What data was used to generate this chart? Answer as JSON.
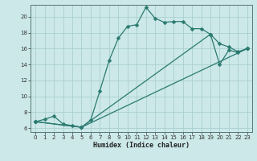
{
  "xlabel": "Humidex (Indice chaleur)",
  "bg_color": "#cce8e8",
  "grid_color": "#aacfcf",
  "line_color": "#2a7a70",
  "xlim": [
    -0.5,
    23.5
  ],
  "ylim": [
    5.5,
    21.5
  ],
  "yticks": [
    6,
    8,
    10,
    12,
    14,
    16,
    18,
    20
  ],
  "xticks": [
    0,
    1,
    2,
    3,
    4,
    5,
    6,
    7,
    8,
    9,
    10,
    11,
    12,
    13,
    14,
    15,
    16,
    17,
    18,
    19,
    20,
    21,
    22,
    23
  ],
  "line1_x": [
    0,
    1,
    2,
    3,
    4,
    5,
    6,
    7,
    8,
    9,
    10,
    11,
    12,
    13,
    14,
    15,
    16,
    17,
    18,
    19,
    20,
    21,
    22,
    23
  ],
  "line1_y": [
    6.8,
    7.1,
    7.5,
    6.5,
    6.3,
    6.1,
    7.0,
    10.7,
    14.5,
    17.3,
    18.8,
    19.0,
    21.2,
    19.8,
    19.3,
    19.4,
    19.4,
    18.5,
    18.5,
    17.8,
    16.6,
    16.2,
    15.6,
    16.0
  ],
  "line2_x": [
    0,
    5,
    23
  ],
  "line2_y": [
    6.8,
    6.1,
    16.0
  ],
  "line3_x": [
    0,
    5,
    19,
    20,
    21,
    22,
    23
  ],
  "line3_y": [
    6.8,
    6.1,
    17.8,
    14.0,
    15.8,
    15.5,
    16.0
  ]
}
